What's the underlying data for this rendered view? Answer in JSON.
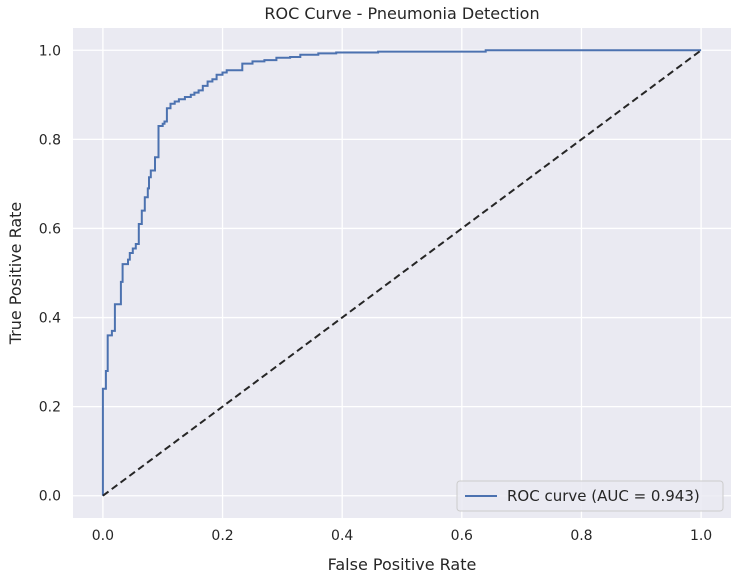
{
  "chart_data": {
    "type": "line",
    "title": "ROC Curve - Pneumonia Detection",
    "xlabel": "False Positive Rate",
    "ylabel": "True Positive Rate",
    "xlim": [
      -0.05,
      1.05
    ],
    "ylim": [
      -0.05,
      1.05
    ],
    "xticks": [
      "0.0",
      "0.2",
      "0.4",
      "0.6",
      "0.8",
      "1.0"
    ],
    "yticks": [
      "0.0",
      "0.2",
      "0.4",
      "0.6",
      "0.8",
      "1.0"
    ],
    "grid": true,
    "legend_position": "lower right",
    "series": [
      {
        "name": "ROC curve (AUC = 0.943)",
        "color": "#4c72b0",
        "style": "solid",
        "points": [
          [
            0.0,
            0.0
          ],
          [
            0.0,
            0.24
          ],
          [
            0.005,
            0.24
          ],
          [
            0.005,
            0.28
          ],
          [
            0.008,
            0.28
          ],
          [
            0.008,
            0.36
          ],
          [
            0.015,
            0.36
          ],
          [
            0.015,
            0.37
          ],
          [
            0.02,
            0.37
          ],
          [
            0.02,
            0.43
          ],
          [
            0.03,
            0.43
          ],
          [
            0.03,
            0.48
          ],
          [
            0.033,
            0.48
          ],
          [
            0.033,
            0.52
          ],
          [
            0.042,
            0.52
          ],
          [
            0.042,
            0.53
          ],
          [
            0.045,
            0.53
          ],
          [
            0.045,
            0.545
          ],
          [
            0.05,
            0.545
          ],
          [
            0.05,
            0.555
          ],
          [
            0.055,
            0.555
          ],
          [
            0.055,
            0.565
          ],
          [
            0.06,
            0.565
          ],
          [
            0.06,
            0.61
          ],
          [
            0.065,
            0.61
          ],
          [
            0.065,
            0.64
          ],
          [
            0.07,
            0.64
          ],
          [
            0.07,
            0.67
          ],
          [
            0.075,
            0.67
          ],
          [
            0.075,
            0.69
          ],
          [
            0.077,
            0.69
          ],
          [
            0.077,
            0.715
          ],
          [
            0.08,
            0.715
          ],
          [
            0.08,
            0.73
          ],
          [
            0.087,
            0.73
          ],
          [
            0.087,
            0.76
          ],
          [
            0.093,
            0.76
          ],
          [
            0.093,
            0.83
          ],
          [
            0.1,
            0.83
          ],
          [
            0.1,
            0.835
          ],
          [
            0.103,
            0.835
          ],
          [
            0.103,
            0.84
          ],
          [
            0.107,
            0.84
          ],
          [
            0.107,
            0.87
          ],
          [
            0.113,
            0.87
          ],
          [
            0.113,
            0.88
          ],
          [
            0.12,
            0.88
          ],
          [
            0.12,
            0.885
          ],
          [
            0.127,
            0.885
          ],
          [
            0.127,
            0.89
          ],
          [
            0.137,
            0.89
          ],
          [
            0.137,
            0.895
          ],
          [
            0.147,
            0.895
          ],
          [
            0.147,
            0.9
          ],
          [
            0.153,
            0.9
          ],
          [
            0.153,
            0.905
          ],
          [
            0.16,
            0.905
          ],
          [
            0.16,
            0.91
          ],
          [
            0.167,
            0.91
          ],
          [
            0.167,
            0.92
          ],
          [
            0.175,
            0.92
          ],
          [
            0.175,
            0.93
          ],
          [
            0.183,
            0.93
          ],
          [
            0.183,
            0.935
          ],
          [
            0.19,
            0.935
          ],
          [
            0.19,
            0.945
          ],
          [
            0.2,
            0.945
          ],
          [
            0.2,
            0.95
          ],
          [
            0.207,
            0.95
          ],
          [
            0.207,
            0.955
          ],
          [
            0.233,
            0.955
          ],
          [
            0.233,
            0.97
          ],
          [
            0.25,
            0.97
          ],
          [
            0.25,
            0.975
          ],
          [
            0.27,
            0.975
          ],
          [
            0.27,
            0.978
          ],
          [
            0.29,
            0.978
          ],
          [
            0.29,
            0.983
          ],
          [
            0.313,
            0.983
          ],
          [
            0.313,
            0.985
          ],
          [
            0.33,
            0.985
          ],
          [
            0.33,
            0.99
          ],
          [
            0.36,
            0.99
          ],
          [
            0.36,
            0.993
          ],
          [
            0.39,
            0.993
          ],
          [
            0.39,
            0.995
          ],
          [
            0.46,
            0.995
          ],
          [
            0.46,
            0.997
          ],
          [
            0.64,
            0.997
          ],
          [
            0.64,
            1.0
          ],
          [
            1.0,
            1.0
          ]
        ]
      },
      {
        "name": "",
        "color": "#262626",
        "style": "dashed",
        "points": [
          [
            0.0,
            0.0
          ],
          [
            1.0,
            1.0
          ]
        ]
      }
    ]
  }
}
